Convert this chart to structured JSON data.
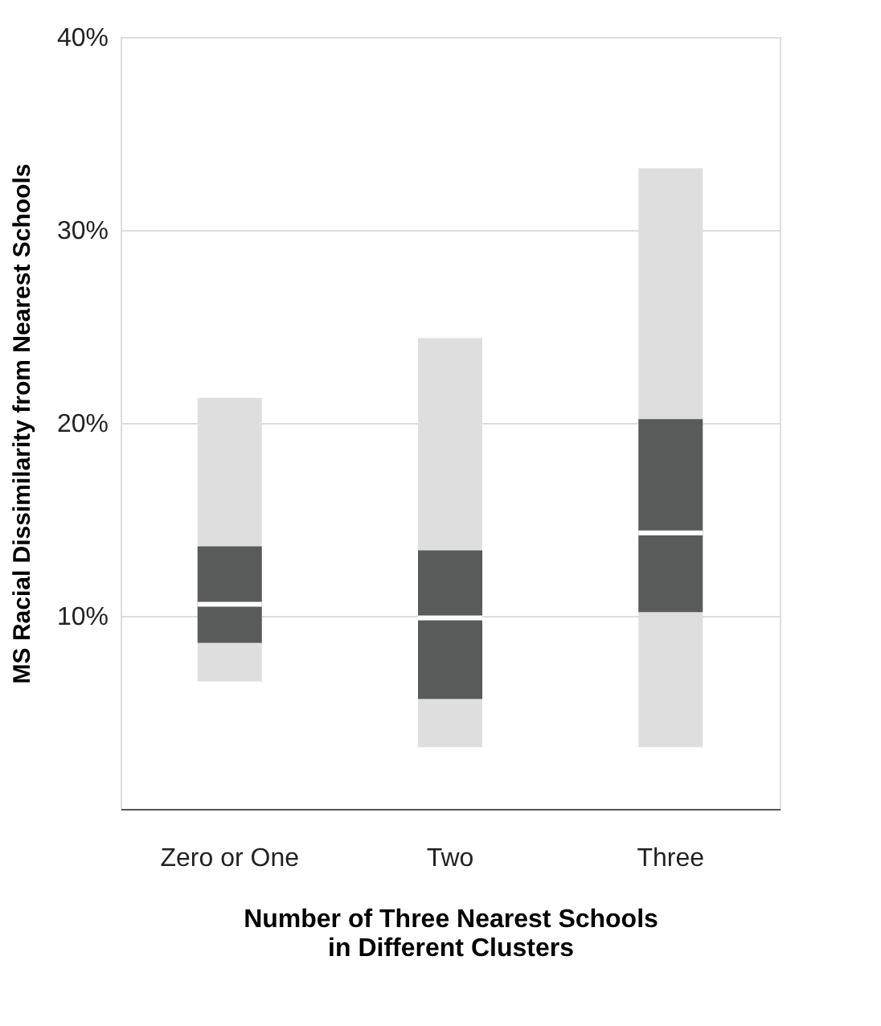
{
  "chart_data": {
    "type": "box",
    "xlabel": "Number of Three Nearest Schools\nin Different Clusters",
    "ylabel": "MS Racial Dissimilarity from Nearest Schools",
    "categories": [
      "Zero or One",
      "Two",
      "Three"
    ],
    "series": [
      {
        "color": "#595b5a",
        "boxes": [
          {
            "low": 6.6,
            "q1": 8.6,
            "median": 10.6,
            "q3": 13.6,
            "high": 21.3
          },
          {
            "low": 3.2,
            "q1": 5.7,
            "median": 9.9,
            "q3": 13.4,
            "high": 24.4
          },
          {
            "low": 3.2,
            "q1": 10.2,
            "median": 14.3,
            "q3": 20.2,
            "high": 33.2
          }
        ]
      }
    ],
    "ylim": [
      0,
      40
    ],
    "yticks": [
      {
        "value": 10,
        "label": "10%"
      },
      {
        "value": 20,
        "label": "20%"
      },
      {
        "value": 30,
        "label": "30%"
      },
      {
        "value": 40,
        "label": "40%"
      }
    ],
    "grid": "y"
  }
}
